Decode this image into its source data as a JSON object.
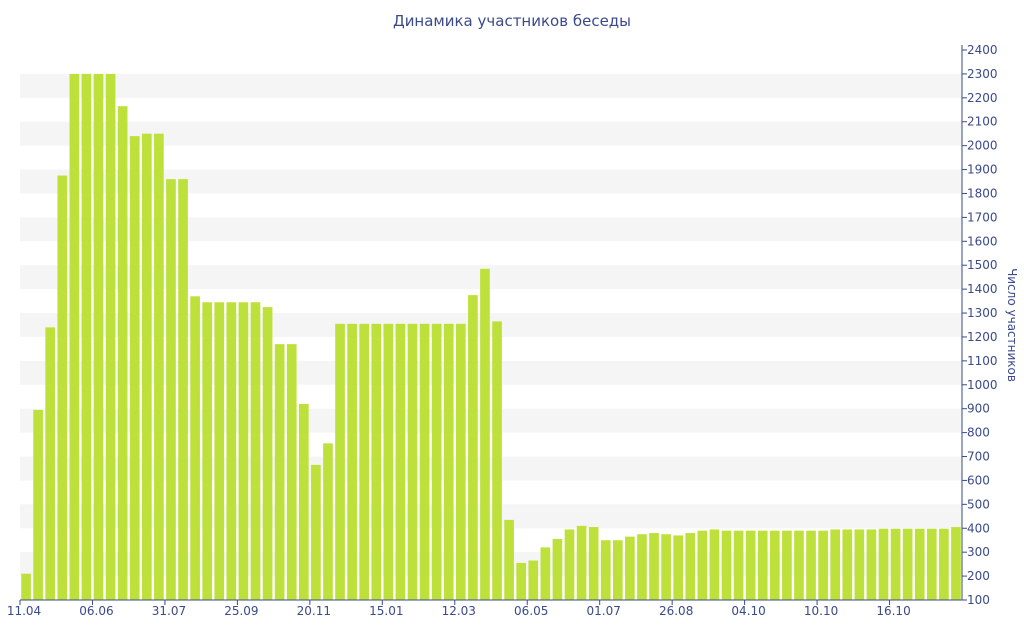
{
  "colors": {
    "bar": "#bde03a",
    "band": "#f5f5f5",
    "axis": "#3a4a8a",
    "text": "#3a4a8a"
  },
  "chart_data": {
    "type": "bar",
    "title": "Динамика участников беседы",
    "ylabel": "Число участников",
    "ylim": [
      100,
      2400
    ],
    "ytick_step": 100,
    "y_axis_position": "right",
    "grid": "alternating horizontal bands",
    "x_tick_labels": [
      {
        "index": 0,
        "label": "11.04"
      },
      {
        "index": 6,
        "label": "06.06"
      },
      {
        "index": 12,
        "label": "31.07"
      },
      {
        "index": 18,
        "label": "25.09"
      },
      {
        "index": 24,
        "label": "20.11"
      },
      {
        "index": 30,
        "label": "15.01"
      },
      {
        "index": 36,
        "label": "12.03"
      },
      {
        "index": 42,
        "label": "06.05"
      },
      {
        "index": 48,
        "label": "01.07"
      },
      {
        "index": 54,
        "label": "26.08"
      },
      {
        "index": 60,
        "label": "04.10"
      },
      {
        "index": 66,
        "label": "10.10"
      },
      {
        "index": 72,
        "label": "16.10"
      }
    ],
    "values": [
      210,
      895,
      1240,
      1875,
      2300,
      2300,
      2300,
      2300,
      2165,
      2040,
      2050,
      2050,
      1860,
      1860,
      1370,
      1345,
      1345,
      1345,
      1345,
      1345,
      1325,
      1170,
      1170,
      920,
      665,
      755,
      1255,
      1255,
      1255,
      1255,
      1255,
      1255,
      1255,
      1255,
      1255,
      1255,
      1255,
      1375,
      1485,
      1265,
      435,
      255,
      265,
      320,
      355,
      395,
      410,
      405,
      350,
      350,
      365,
      375,
      380,
      375,
      370,
      380,
      390,
      395,
      390,
      390,
      390,
      390,
      390,
      390,
      390,
      390,
      390,
      395,
      395,
      395,
      395,
      398,
      398,
      398,
      398,
      398,
      398,
      405
    ]
  }
}
